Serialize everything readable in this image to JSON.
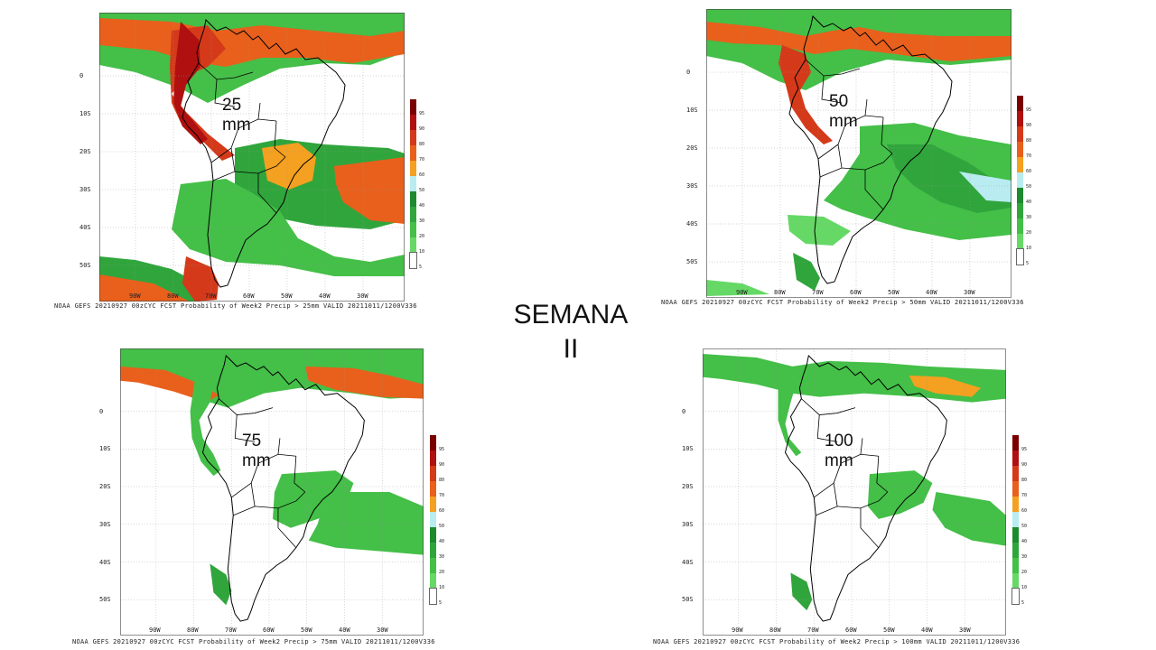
{
  "title": {
    "line1": "SEMANA",
    "line2": "II"
  },
  "lat_labels": [
    "0",
    "10S",
    "20S",
    "30S",
    "40S",
    "50S"
  ],
  "lon_labels": [
    "90W",
    "80W",
    "70W",
    "60W",
    "50W",
    "40W",
    "30W"
  ],
  "colorbar": {
    "labels": [
      "95",
      "90",
      "80",
      "70",
      "60",
      "50",
      "40",
      "30",
      "20",
      "10",
      "5"
    ],
    "colors": [
      "#7a0000",
      "#b01010",
      "#d43a1a",
      "#e8601c",
      "#f4a020",
      "#b8ecf0",
      "#1e8a2e",
      "#30a53c",
      "#44bf48",
      "#66d866",
      "#ffffff"
    ]
  },
  "panels": [
    {
      "threshold": "25 mm",
      "caption": "NOAA GEFS 20210927 00zCYC FCST Probability of Week2 Precip > 25mm  VALID 20211011/1200V336"
    },
    {
      "threshold": "50 mm",
      "caption": "NOAA GEFS 20210927 00zCYC FCST Probability of Week2 Precip > 50mm  VALID 20211011/1200V336"
    },
    {
      "threshold": "75 mm",
      "caption": "NOAA GEFS 20210927 00zCYC FCST Probability of Week2 Precip > 75mm  VALID 20211011/1200V336"
    },
    {
      "threshold": "100 mm",
      "caption": "NOAA GEFS 20210927 00zCYC FCST Probability of Week2 Precip > 100mm  VALID 20211011/1200V336"
    }
  ]
}
